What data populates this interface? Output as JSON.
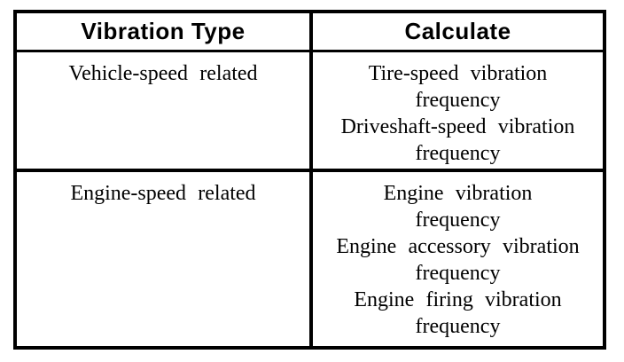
{
  "table": {
    "columns": [
      {
        "header": "Vibration Type"
      },
      {
        "header": "Calculate"
      }
    ],
    "rows": [
      {
        "vibration_type": "Vehicle-speed related",
        "calculate_lines": [
          "Tire-speed vibration",
          "frequency",
          "Driveshaft-speed vibration",
          "frequency"
        ]
      },
      {
        "vibration_type": "Engine-speed related",
        "calculate_lines": [
          "Engine vibration",
          "frequency",
          "Engine accessory vibration",
          "frequency",
          "Engine firing vibration",
          "frequency"
        ]
      }
    ],
    "border_color": "#000000",
    "background_color": "#ffffff"
  }
}
